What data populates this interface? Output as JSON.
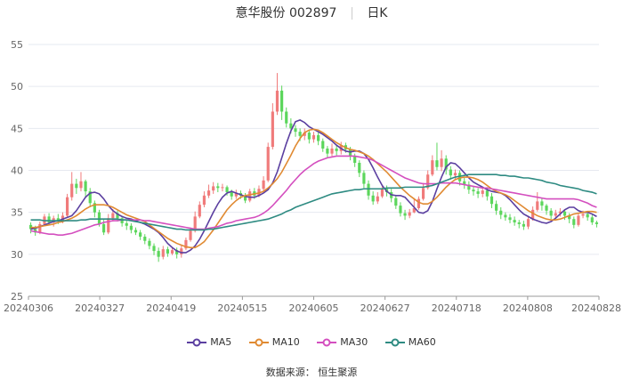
{
  "title": {
    "name": "意华股份 002897",
    "period": "日K"
  },
  "source": "数据来源：  恒生聚源",
  "colors": {
    "up": "#f07b7b",
    "down": "#5cd65c",
    "MA5": "#5b3fa0",
    "MA10": "#e08a32",
    "MA30": "#d44fbf",
    "MA60": "#2e8b82",
    "grid": "#e6e9f0",
    "axis": "#666666"
  },
  "chart_data": {
    "type": "candlestick",
    "ylim": [
      25,
      55
    ],
    "yticks": [
      25,
      30,
      35,
      40,
      45,
      50,
      55
    ],
    "xticks": [
      "20240306",
      "20240327",
      "20240419",
      "20240515",
      "20240605",
      "20240627",
      "20240718",
      "20240808",
      "20240828"
    ],
    "grid": true,
    "legend_position": "bottom",
    "series": [
      {
        "name": "MA5",
        "values": [
          33.0,
          33.1,
          33.3,
          33.5,
          33.7,
          33.9,
          34.0,
          34.2,
          34.4,
          34.6,
          35.2,
          36.0,
          36.8,
          37.3,
          37.4,
          37.2,
          36.6,
          35.8,
          35.2,
          34.8,
          34.5,
          34.3,
          34.2,
          34.0,
          33.8,
          33.6,
          33.3,
          33.0,
          32.6,
          32.0,
          31.3,
          30.8,
          30.4,
          30.2,
          30.2,
          30.5,
          31.0,
          31.8,
          32.8,
          33.9,
          35.0,
          36.0,
          36.8,
          37.3,
          37.5,
          37.3,
          37.1,
          36.9,
          36.8,
          36.8,
          37.0,
          37.3,
          37.7,
          38.5,
          39.8,
          41.5,
          43.2,
          44.7,
          45.8,
          46.0,
          45.7,
          45.2,
          44.9,
          44.6,
          44.3,
          43.9,
          43.5,
          43.0,
          42.6,
          42.3,
          42.2,
          42.3,
          42.3,
          42.0,
          41.3,
          40.3,
          39.2,
          38.2,
          37.5,
          37.1,
          37.0,
          37.0,
          36.8,
          36.2,
          35.6,
          35.0,
          34.9,
          35.2,
          36.3,
          37.8,
          39.2,
          40.4,
          40.9,
          40.8,
          40.3,
          39.7,
          39.1,
          38.6,
          38.3,
          38.0,
          37.7,
          37.5,
          37.4,
          37.3,
          37.0,
          36.5,
          35.9,
          35.3,
          34.8,
          34.5,
          34.2,
          34.0,
          33.8,
          33.7,
          33.9,
          34.3,
          34.8,
          35.3,
          35.6,
          35.6,
          35.2,
          35.0,
          35.0,
          34.8,
          34.5
        ]
      },
      {
        "name": "MA10",
        "values": [
          33.2,
          33.2,
          33.3,
          33.4,
          33.5,
          33.6,
          33.8,
          33.9,
          34.1,
          34.3,
          34.6,
          35.0,
          35.4,
          35.7,
          35.9,
          35.9,
          35.9,
          35.8,
          35.6,
          35.3,
          35.0,
          34.7,
          34.5,
          34.3,
          34.1,
          33.9,
          33.5,
          33.1,
          32.7,
          32.3,
          31.9,
          31.6,
          31.3,
          31.1,
          30.9,
          30.8,
          30.8,
          31.1,
          31.5,
          32.2,
          32.9,
          33.7,
          34.5,
          35.3,
          35.9,
          36.4,
          36.8,
          37.0,
          37.1,
          37.2,
          37.3,
          37.5,
          37.9,
          38.4,
          39.0,
          39.8,
          40.8,
          41.8,
          42.9,
          43.8,
          44.5,
          44.8,
          44.9,
          44.8,
          44.5,
          44.1,
          43.7,
          43.3,
          43.0,
          42.7,
          42.5,
          42.4,
          42.2,
          42.0,
          41.7,
          41.3,
          40.8,
          40.3,
          39.8,
          39.2,
          38.6,
          38.0,
          37.5,
          37.0,
          36.6,
          36.2,
          36.0,
          36.0,
          36.3,
          36.8,
          37.4,
          38.0,
          38.5,
          38.9,
          39.1,
          39.2,
          39.2,
          39.1,
          38.9,
          38.6,
          38.2,
          37.8,
          37.5,
          37.3,
          37.1,
          36.8,
          36.4,
          36.0,
          35.6,
          35.2,
          34.9,
          34.6,
          34.4,
          34.2,
          34.1,
          34.1,
          34.2,
          34.4,
          34.6,
          34.8,
          34.9,
          35.0,
          35.1,
          35.1,
          35.0
        ]
      },
      {
        "name": "MA30",
        "values": [
          32.8,
          32.7,
          32.6,
          32.5,
          32.4,
          32.4,
          32.3,
          32.3,
          32.4,
          32.5,
          32.7,
          32.9,
          33.1,
          33.3,
          33.5,
          33.6,
          33.8,
          33.9,
          34.0,
          34.0,
          34.1,
          34.1,
          34.1,
          34.1,
          34.1,
          34.0,
          34.0,
          33.9,
          33.8,
          33.7,
          33.6,
          33.5,
          33.4,
          33.3,
          33.2,
          33.1,
          33.0,
          33.0,
          33.0,
          33.1,
          33.2,
          33.3,
          33.5,
          33.7,
          33.8,
          34.0,
          34.1,
          34.2,
          34.3,
          34.4,
          34.6,
          34.9,
          35.3,
          35.8,
          36.4,
          37.0,
          37.6,
          38.3,
          38.9,
          39.5,
          40.0,
          40.4,
          40.8,
          41.1,
          41.3,
          41.5,
          41.6,
          41.7,
          41.7,
          41.7,
          41.7,
          41.7,
          41.6,
          41.5,
          41.4,
          41.2,
          40.9,
          40.6,
          40.3,
          40.0,
          39.7,
          39.4,
          39.1,
          38.9,
          38.7,
          38.5,
          38.4,
          38.4,
          38.4,
          38.4,
          38.5,
          38.5,
          38.5,
          38.5,
          38.4,
          38.3,
          38.2,
          38.1,
          38.0,
          37.9,
          37.9,
          37.8,
          37.7,
          37.6,
          37.5,
          37.4,
          37.3,
          37.2,
          37.1,
          37.0,
          36.9,
          36.8,
          36.7,
          36.6,
          36.6,
          36.6,
          36.6,
          36.6,
          36.6,
          36.6,
          36.5,
          36.3,
          36.1,
          35.8,
          35.6
        ]
      },
      {
        "name": "MA60",
        "values": [
          34.1,
          34.1,
          34.1,
          34.0,
          34.0,
          34.0,
          34.0,
          34.0,
          34.0,
          34.0,
          34.0,
          34.1,
          34.1,
          34.2,
          34.2,
          34.2,
          34.2,
          34.2,
          34.2,
          34.2,
          34.1,
          34.1,
          34.0,
          33.9,
          33.8,
          33.7,
          33.6,
          33.5,
          33.4,
          33.3,
          33.2,
          33.1,
          33.0,
          33.0,
          32.9,
          32.9,
          32.9,
          32.9,
          32.9,
          33.0,
          33.0,
          33.1,
          33.2,
          33.3,
          33.4,
          33.5,
          33.6,
          33.7,
          33.8,
          33.9,
          34.0,
          34.1,
          34.2,
          34.4,
          34.6,
          34.8,
          35.1,
          35.3,
          35.6,
          35.8,
          36.0,
          36.2,
          36.4,
          36.6,
          36.8,
          37.0,
          37.2,
          37.3,
          37.4,
          37.5,
          37.6,
          37.7,
          37.7,
          37.8,
          37.8,
          37.8,
          37.8,
          37.8,
          37.9,
          37.9,
          37.9,
          37.9,
          38.0,
          38.0,
          38.0,
          38.0,
          38.0,
          38.1,
          38.2,
          38.4,
          38.6,
          38.8,
          39.0,
          39.2,
          39.3,
          39.4,
          39.5,
          39.5,
          39.5,
          39.5,
          39.5,
          39.5,
          39.5,
          39.4,
          39.4,
          39.3,
          39.3,
          39.2,
          39.1,
          39.1,
          39.0,
          38.9,
          38.8,
          38.6,
          38.5,
          38.4,
          38.2,
          38.1,
          38.0,
          37.9,
          37.8,
          37.6,
          37.5,
          37.4,
          37.2
        ]
      }
    ],
    "candles": [
      [
        33.5,
        33.0,
        33.8,
        32.5
      ],
      [
        33.0,
        32.6,
        33.4,
        32.2
      ],
      [
        32.6,
        33.6,
        33.9,
        32.4
      ],
      [
        33.6,
        34.5,
        34.8,
        33.4
      ],
      [
        34.5,
        33.8,
        34.9,
        33.5
      ],
      [
        33.8,
        34.3,
        34.6,
        33.3
      ],
      [
        34.3,
        33.9,
        34.8,
        33.6
      ],
      [
        33.9,
        34.6,
        35.0,
        33.7
      ],
      [
        34.6,
        36.8,
        37.2,
        34.4
      ],
      [
        36.8,
        38.4,
        39.8,
        36.4
      ],
      [
        38.4,
        37.9,
        39.0,
        37.2
      ],
      [
        37.9,
        38.7,
        39.8,
        37.5
      ],
      [
        38.7,
        37.5,
        38.9,
        36.7
      ],
      [
        37.5,
        36.1,
        37.9,
        35.6
      ],
      [
        36.1,
        35.0,
        36.4,
        34.4
      ],
      [
        35.0,
        33.6,
        35.3,
        33.3
      ],
      [
        33.6,
        32.6,
        34.1,
        32.3
      ],
      [
        32.6,
        34.3,
        34.8,
        32.4
      ],
      [
        34.3,
        34.9,
        35.4,
        33.9
      ],
      [
        34.9,
        34.3,
        35.2,
        33.9
      ],
      [
        34.3,
        33.7,
        34.6,
        33.3
      ],
      [
        33.7,
        33.4,
        34.0,
        32.9
      ],
      [
        33.4,
        32.9,
        33.7,
        32.5
      ],
      [
        32.9,
        32.6,
        33.2,
        32.3
      ],
      [
        32.6,
        32.1,
        32.9,
        31.7
      ],
      [
        32.1,
        31.6,
        32.4,
        31.2
      ],
      [
        31.6,
        31.0,
        31.9,
        30.6
      ],
      [
        31.0,
        30.4,
        31.3,
        29.9
      ],
      [
        30.4,
        29.7,
        30.8,
        29.1
      ],
      [
        29.7,
        30.6,
        31.0,
        29.4
      ],
      [
        30.6,
        30.1,
        30.9,
        29.7
      ],
      [
        30.1,
        30.5,
        30.9,
        29.9
      ],
      [
        30.5,
        30.0,
        30.8,
        29.5
      ],
      [
        30.0,
        30.7,
        31.1,
        29.6
      ],
      [
        30.7,
        31.7,
        32.0,
        30.5
      ],
      [
        31.7,
        32.8,
        33.2,
        31.5
      ],
      [
        32.8,
        34.5,
        35.1,
        32.6
      ],
      [
        34.5,
        35.9,
        36.3,
        34.3
      ],
      [
        35.9,
        37.0,
        37.5,
        35.6
      ],
      [
        37.0,
        37.6,
        38.3,
        36.7
      ],
      [
        37.6,
        38.1,
        38.6,
        37.2
      ],
      [
        38.1,
        37.9,
        38.5,
        37.4
      ],
      [
        37.9,
        38.0,
        38.4,
        37.5
      ],
      [
        38.0,
        37.4,
        38.2,
        37.0
      ],
      [
        37.4,
        36.9,
        37.7,
        36.5
      ],
      [
        36.9,
        37.3,
        37.7,
        36.6
      ],
      [
        37.3,
        37.0,
        37.6,
        36.6
      ],
      [
        37.0,
        36.4,
        37.3,
        36.1
      ],
      [
        36.4,
        37.5,
        37.8,
        36.2
      ],
      [
        37.5,
        37.0,
        37.9,
        36.6
      ],
      [
        37.0,
        37.8,
        38.2,
        36.8
      ],
      [
        37.8,
        38.8,
        39.3,
        37.6
      ],
      [
        38.8,
        42.8,
        43.3,
        38.6
      ],
      [
        42.8,
        47.0,
        48.0,
        42.5
      ],
      [
        47.0,
        49.5,
        51.6,
        46.6
      ],
      [
        49.5,
        47.0,
        50.1,
        46.0
      ],
      [
        47.0,
        45.6,
        47.5,
        45.1
      ],
      [
        45.6,
        45.0,
        46.2,
        44.4
      ],
      [
        45.0,
        44.6,
        45.4,
        44.0
      ],
      [
        44.6,
        44.1,
        45.0,
        43.5
      ],
      [
        44.1,
        44.5,
        45.0,
        43.6
      ],
      [
        44.5,
        43.7,
        44.8,
        43.2
      ],
      [
        43.7,
        44.2,
        44.6,
        43.3
      ],
      [
        44.2,
        43.5,
        44.5,
        43.0
      ],
      [
        43.5,
        42.6,
        43.8,
        42.2
      ],
      [
        42.6,
        42.0,
        42.9,
        41.5
      ],
      [
        42.0,
        42.6,
        43.2,
        41.7
      ],
      [
        42.6,
        42.3,
        43.0,
        41.8
      ],
      [
        42.3,
        43.0,
        43.4,
        41.9
      ],
      [
        43.0,
        42.5,
        43.3,
        42.1
      ],
      [
        42.5,
        41.7,
        42.8,
        41.2
      ],
      [
        41.7,
        40.9,
        42.0,
        40.4
      ],
      [
        40.9,
        39.7,
        41.2,
        39.2
      ],
      [
        39.7,
        38.4,
        40.0,
        37.9
      ],
      [
        38.4,
        37.0,
        38.8,
        36.5
      ],
      [
        37.0,
        36.3,
        37.5,
        35.9
      ],
      [
        36.3,
        36.9,
        37.4,
        36.0
      ],
      [
        36.9,
        37.8,
        38.3,
        36.7
      ],
      [
        37.8,
        37.4,
        38.2,
        36.9
      ],
      [
        37.4,
        36.7,
        37.8,
        36.2
      ],
      [
        36.7,
        35.8,
        37.0,
        35.4
      ],
      [
        35.8,
        34.9,
        36.2,
        34.5
      ],
      [
        34.9,
        34.6,
        35.3,
        34.1
      ],
      [
        34.6,
        35.0,
        35.4,
        34.3
      ],
      [
        35.0,
        35.5,
        36.7,
        34.9
      ],
      [
        35.5,
        36.6,
        36.9,
        35.3
      ],
      [
        36.6,
        37.9,
        38.5,
        36.4
      ],
      [
        37.9,
        39.5,
        40.0,
        37.7
      ],
      [
        39.5,
        41.2,
        41.8,
        39.3
      ],
      [
        41.2,
        40.4,
        43.3,
        40.0
      ],
      [
        40.4,
        41.4,
        42.4,
        39.9
      ],
      [
        41.4,
        40.1,
        41.8,
        39.5
      ],
      [
        40.1,
        39.4,
        40.5,
        38.9
      ],
      [
        39.4,
        39.7,
        40.1,
        38.9
      ],
      [
        39.7,
        38.7,
        40.0,
        38.2
      ],
      [
        38.7,
        38.3,
        39.1,
        37.8
      ],
      [
        38.3,
        37.7,
        38.7,
        37.2
      ],
      [
        37.7,
        37.5,
        38.1,
        37.0
      ],
      [
        37.5,
        37.2,
        37.9,
        36.7
      ],
      [
        37.2,
        37.6,
        38.0,
        36.8
      ],
      [
        37.6,
        36.9,
        38.0,
        36.4
      ],
      [
        36.9,
        36.0,
        37.3,
        35.5
      ],
      [
        36.0,
        35.2,
        36.4,
        34.7
      ],
      [
        35.2,
        34.7,
        35.6,
        34.2
      ],
      [
        34.7,
        34.4,
        35.0,
        34.0
      ],
      [
        34.4,
        34.1,
        34.8,
        33.7
      ],
      [
        34.1,
        33.8,
        34.5,
        33.4
      ],
      [
        33.8,
        33.6,
        34.1,
        33.1
      ],
      [
        33.6,
        33.3,
        34.0,
        32.9
      ],
      [
        33.3,
        34.2,
        34.6,
        33.0
      ],
      [
        34.2,
        35.3,
        35.7,
        34.0
      ],
      [
        35.3,
        36.3,
        37.4,
        35.1
      ],
      [
        36.3,
        35.8,
        36.7,
        35.2
      ],
      [
        35.8,
        35.2,
        36.0,
        34.7
      ],
      [
        35.2,
        34.6,
        35.5,
        34.2
      ],
      [
        34.6,
        34.9,
        35.3,
        34.3
      ],
      [
        34.9,
        35.1,
        35.5,
        34.5
      ],
      [
        35.1,
        34.6,
        35.3,
        34.1
      ],
      [
        34.6,
        34.2,
        34.9,
        33.7
      ],
      [
        34.2,
        33.5,
        34.5,
        33.1
      ],
      [
        33.5,
        34.6,
        34.9,
        33.3
      ],
      [
        34.6,
        34.8,
        35.2,
        34.3
      ],
      [
        34.8,
        34.4,
        35.1,
        34.0
      ],
      [
        34.4,
        33.8,
        34.7,
        33.5
      ],
      [
        33.8,
        33.6,
        34.0,
        33.2
      ]
    ]
  }
}
